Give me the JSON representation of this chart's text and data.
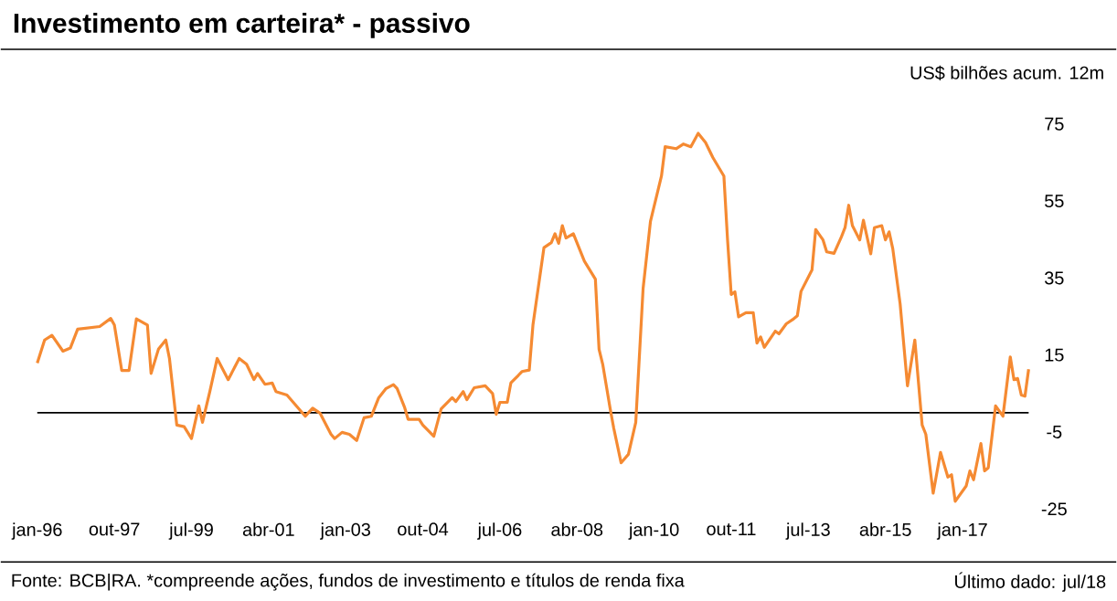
{
  "chart_data": {
    "type": "line",
    "title": "Investimento em carteira* - passivo",
    "ylabel": "US$ bilhões acum. 12m",
    "annotations": [
      "Fonte: BCB|RA. *compreende ações, fundos de investimento e títulos de renda fixa",
      "Último dado: jul/18"
    ],
    "color": "#f58a32",
    "x": [
      "1996-01",
      "1996-03",
      "1996-05",
      "1996-08",
      "1996-10",
      "1996-12",
      "1997-06",
      "1997-09",
      "1997-10",
      "1997-12",
      "1998-02",
      "1998-04",
      "1998-07",
      "1998-08",
      "1998-10",
      "1998-12",
      "1999-01",
      "1999-03",
      "1999-05",
      "1999-07",
      "1999-09",
      "1999-10",
      "1999-12",
      "2000-02",
      "2000-05",
      "2000-08",
      "2000-10",
      "2000-12",
      "2001-01",
      "2001-03",
      "2001-05",
      "2001-06",
      "2001-09",
      "2002-02",
      "2002-04",
      "2002-06",
      "2002-09",
      "2002-10",
      "2002-12",
      "2003-02",
      "2003-04",
      "2003-06",
      "2003-08",
      "2003-10",
      "2003-12",
      "2004-02",
      "2004-03",
      "2004-05",
      "2004-06",
      "2004-09",
      "2004-10",
      "2005-01",
      "2005-03",
      "2005-06",
      "2005-07",
      "2005-09",
      "2005-10",
      "2005-12",
      "2006-03",
      "2006-05",
      "2006-06",
      "2006-07",
      "2006-09",
      "2006-10",
      "2006-12",
      "2007-01",
      "2007-03",
      "2007-04",
      "2007-07",
      "2007-09",
      "2007-10",
      "2007-11",
      "2007-12",
      "2008-01",
      "2008-03",
      "2008-06",
      "2008-09",
      "2008-10",
      "2008-11",
      "2009-01",
      "2009-02",
      "2009-04",
      "2009-06",
      "2009-08",
      "2009-10",
      "2009-12",
      "2010-03",
      "2010-04",
      "2010-07",
      "2010-09",
      "2010-11",
      "2011-01",
      "2011-03",
      "2011-05",
      "2011-08",
      "2011-09",
      "2011-10",
      "2011-11",
      "2011-12",
      "2012-02",
      "2012-04",
      "2012-05",
      "2012-06",
      "2012-07",
      "2012-10",
      "2012-11",
      "2013-01",
      "2013-03",
      "2013-04",
      "2013-05",
      "2013-08",
      "2013-09",
      "2013-11",
      "2013-12",
      "2014-02",
      "2014-04",
      "2014-05",
      "2014-06",
      "2014-07",
      "2014-09",
      "2014-10",
      "2014-12",
      "2015-01",
      "2015-03",
      "2015-04",
      "2015-05",
      "2015-06",
      "2015-08",
      "2015-10",
      "2015-12",
      "2016-02",
      "2016-03",
      "2016-05",
      "2016-07",
      "2016-09",
      "2016-10",
      "2016-11",
      "2017-02",
      "2017-03",
      "2017-04",
      "2017-06",
      "2017-07",
      "2017-08",
      "2017-10",
      "2017-12",
      "2018-02",
      "2018-03",
      "2018-04",
      "2018-05",
      "2018-06",
      "2018-07"
    ],
    "values": [
      12.9,
      18.9,
      20.1,
      16,
      16.8,
      21.7,
      22.4,
      24.5,
      22.8,
      11,
      11,
      24.4,
      22.8,
      10.2,
      16.5,
      18.9,
      14.1,
      -3.2,
      -3.6,
      -6.7,
      1.8,
      -2.5,
      5.5,
      14.1,
      8.6,
      14.1,
      12.6,
      8.6,
      10.2,
      7.4,
      7.7,
      5.5,
      4.6,
      -0.9,
      1.2,
      -0.1,
      -5.6,
      -6.7,
      -5.1,
      -5.6,
      -7.2,
      -1.3,
      -0.9,
      3.9,
      6.3,
      7.3,
      6.3,
      1.5,
      -1.7,
      -1.7,
      -3.2,
      -6.1,
      1,
      3.9,
      2.9,
      5.5,
      3.4,
      6.5,
      7,
      5,
      -0.4,
      2.7,
      2.7,
      7.8,
      9.7,
      10.7,
      11.1,
      22.8,
      42.9,
      44.2,
      46.5,
      44,
      48.6,
      45.4,
      46.5,
      39.4,
      34.7,
      16.5,
      12.6,
      1.2,
      -4,
      -13,
      -10.8,
      -2.5,
      32.3,
      49.7,
      61.5,
      69.1,
      68.6,
      69.8,
      69.1,
      72.6,
      70.2,
      66.3,
      61.5,
      44.9,
      30.7,
      31.4,
      24.9,
      26,
      26,
      18.1,
      19.7,
      17,
      21.2,
      20.5,
      23.1,
      24.4,
      25.2,
      31.5,
      37.1,
      47.6,
      44.9,
      41.8,
      41.4,
      45.7,
      48.1,
      53.9,
      48.6,
      44.9,
      50,
      41.3,
      48.1,
      48.6,
      44.9,
      47,
      42.6,
      28.3,
      7,
      18.9,
      -3.2,
      -5.6,
      -20.9,
      -10.3,
      -16.7,
      -16.1,
      -23,
      -19,
      -15.1,
      -17.4,
      -8,
      -15.1,
      -14.3,
      1.8,
      -0.9,
      14.5,
      8.6,
      8.9,
      4.6,
      4.3,
      11.3
    ],
    "xlim": [
      "1996-01",
      "2018-07"
    ],
    "xticks": [
      {
        "value": "1996-01",
        "label": "jan-96"
      },
      {
        "value": "1997-10",
        "label": "out-97"
      },
      {
        "value": "1999-07",
        "label": "jul-99"
      },
      {
        "value": "2001-04",
        "label": "abr-01"
      },
      {
        "value": "2003-01",
        "label": "jan-03"
      },
      {
        "value": "2004-10",
        "label": "out-04"
      },
      {
        "value": "2006-07",
        "label": "jul-06"
      },
      {
        "value": "2008-04",
        "label": "abr-08"
      },
      {
        "value": "2010-01",
        "label": "jan-10"
      },
      {
        "value": "2011-10",
        "label": "out-11"
      },
      {
        "value": "2013-07",
        "label": "jul-13"
      },
      {
        "value": "2015-04",
        "label": "abr-15"
      },
      {
        "value": "2017-01",
        "label": "jan-17"
      }
    ],
    "ylim": [
      -25,
      75
    ],
    "yticks": [
      -25,
      -5,
      15,
      35,
      55,
      75
    ],
    "ref_lines": [
      {
        "axis": "y",
        "value": 0,
        "color": "#000000"
      }
    ]
  }
}
